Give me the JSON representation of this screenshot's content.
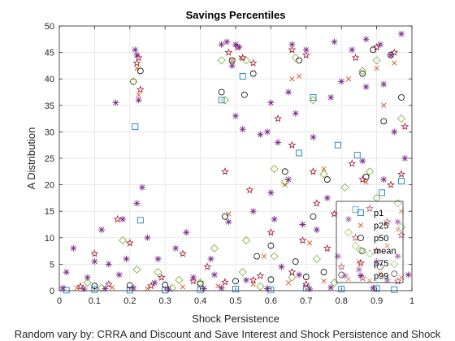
{
  "chart_data": {
    "type": "scatter",
    "title": "Savings Percentiles",
    "xlabel": "Shock Persistence",
    "ylabel": "A Distribution",
    "footer": "Random vary by: CRRA and Discount and Save Interest and Shock Persistence and Shock",
    "xlim": [
      0,
      1
    ],
    "ylim": [
      0,
      50
    ],
    "xticks": [
      0,
      0.1,
      0.2,
      0.3,
      0.4,
      0.5,
      0.6,
      0.7,
      0.8,
      0.9,
      1
    ],
    "xtick_labels": [
      "0",
      "0.1",
      "0.2",
      "0.3",
      "0.4",
      "0.5",
      "0.6",
      "0.7",
      "0.8",
      "0.9",
      "1"
    ],
    "yticks": [
      0,
      5,
      10,
      15,
      20,
      25,
      30,
      35,
      40,
      45,
      50
    ],
    "ytick_labels": [
      "0",
      "5",
      "10",
      "15",
      "20",
      "25",
      "30",
      "35",
      "40",
      "45",
      "50"
    ],
    "grid": true,
    "legend_position": "bottom-right",
    "series": [
      {
        "name": "p1",
        "marker": "square",
        "color": "#0072BD",
        "points": [
          [
            0.215,
            31.0
          ],
          [
            0.23,
            13.3
          ],
          [
            0.46,
            36.0
          ],
          [
            0.52,
            40.5
          ],
          [
            0.68,
            26.0
          ],
          [
            0.72,
            36.5
          ],
          [
            0.79,
            27.5
          ],
          [
            0.84,
            15.3
          ],
          [
            0.845,
            25.6
          ],
          [
            0.915,
            18.5
          ],
          [
            0.97,
            20.7
          ],
          [
            0.02,
            0.1
          ],
          [
            0.1,
            0.2
          ],
          [
            0.2,
            0.1
          ],
          [
            0.3,
            0.1
          ],
          [
            0.4,
            0.2
          ],
          [
            0.5,
            0.3
          ],
          [
            0.6,
            0.2
          ],
          [
            0.7,
            0.5
          ],
          [
            0.8,
            0.3
          ],
          [
            0.9,
            0.4
          ],
          [
            0.95,
            0.2
          ]
        ]
      },
      {
        "name": "p25",
        "marker": "x",
        "color": "#D95319",
        "points": [
          [
            0.225,
            37.0
          ],
          [
            0.22,
            42.0
          ],
          [
            0.49,
            43.5
          ],
          [
            0.515,
            44.0
          ],
          [
            0.66,
            40.0
          ],
          [
            0.68,
            40.5
          ],
          [
            0.82,
            40.0
          ],
          [
            0.9,
            42.0
          ],
          [
            0.95,
            43.0
          ],
          [
            0.92,
            35.0
          ],
          [
            0.64,
            20.0
          ],
          [
            0.75,
            23.0
          ],
          [
            0.87,
            20.5
          ],
          [
            0.93,
            8.5
          ],
          [
            0.97,
            15.0
          ],
          [
            0.96,
            11.5
          ],
          [
            0.71,
            9.0
          ],
          [
            0.58,
            6.5
          ],
          [
            0.48,
            14.5
          ],
          [
            0.85,
            5.5
          ],
          [
            0.91,
            3.2
          ],
          [
            0.05,
            0.5
          ],
          [
            0.15,
            0.6
          ],
          [
            0.25,
            0.4
          ],
          [
            0.35,
            0.7
          ],
          [
            0.45,
            0.9
          ],
          [
            0.55,
            1.2
          ],
          [
            0.65,
            1.5
          ],
          [
            0.75,
            1.8
          ],
          [
            0.82,
            2.2
          ],
          [
            0.88,
            1.9
          ],
          [
            0.97,
            2.5
          ]
        ]
      },
      {
        "name": "p50",
        "marker": "circle",
        "color": "#000000",
        "points": [
          [
            0.21,
            39.5
          ],
          [
            0.23,
            41.5
          ],
          [
            0.46,
            37.5
          ],
          [
            0.525,
            37.0
          ],
          [
            0.49,
            43.5
          ],
          [
            0.55,
            41.0
          ],
          [
            0.68,
            43.5
          ],
          [
            0.86,
            41.0
          ],
          [
            0.89,
            45.5
          ],
          [
            0.94,
            44.5
          ],
          [
            0.92,
            32.0
          ],
          [
            0.97,
            36.5
          ],
          [
            0.64,
            22.5
          ],
          [
            0.76,
            21.0
          ],
          [
            0.87,
            21.5
          ],
          [
            0.72,
            14.0
          ],
          [
            0.6,
            8.5
          ],
          [
            0.47,
            14.0
          ],
          [
            0.56,
            6.5
          ],
          [
            0.67,
            5.5
          ],
          [
            0.86,
            7.5
          ],
          [
            0.91,
            4.5
          ],
          [
            0.75,
            3.5
          ],
          [
            0.1,
            0.9
          ],
          [
            0.2,
            1.0
          ],
          [
            0.3,
            1.1
          ],
          [
            0.4,
            1.3
          ],
          [
            0.5,
            1.8
          ],
          [
            0.6,
            2.1
          ],
          [
            0.7,
            2.6
          ],
          [
            0.8,
            3.0
          ],
          [
            0.95,
            3.2
          ]
        ]
      },
      {
        "name": "mean",
        "marker": "diamond",
        "color": "#77AC30",
        "points": [
          [
            0.21,
            39.5
          ],
          [
            0.47,
            36.0
          ],
          [
            0.46,
            43.5
          ],
          [
            0.53,
            43.5
          ],
          [
            0.67,
            44.0
          ],
          [
            0.72,
            36.0
          ],
          [
            0.86,
            41.5
          ],
          [
            0.9,
            43.5
          ],
          [
            0.97,
            32.5
          ],
          [
            0.61,
            23.0
          ],
          [
            0.64,
            20.5
          ],
          [
            0.75,
            22.0
          ],
          [
            0.88,
            22.5
          ],
          [
            0.81,
            19.5
          ],
          [
            0.9,
            17.5
          ],
          [
            0.96,
            16.5
          ],
          [
            0.97,
            12.0
          ],
          [
            0.84,
            8.5
          ],
          [
            0.53,
            9.5
          ],
          [
            0.44,
            8.0
          ],
          [
            0.18,
            9.5
          ],
          [
            0.22,
            4.0
          ],
          [
            0.28,
            3.5
          ],
          [
            0.61,
            6.5
          ],
          [
            0.73,
            6.0
          ],
          [
            0.82,
            11.0
          ],
          [
            0.88,
            7.0
          ],
          [
            0.95,
            5.0
          ],
          [
            0.34,
            2.0
          ],
          [
            0.4,
            1.5
          ],
          [
            0.08,
            1.5
          ],
          [
            0.52,
            3.5
          ],
          [
            0.66,
            2.5
          ],
          [
            0.12,
            0.5
          ],
          [
            0.32,
            0.5
          ],
          [
            0.57,
            0.8
          ],
          [
            0.78,
            1.5
          ]
        ]
      },
      {
        "name": "p75",
        "marker": "star",
        "color": "#A2142F",
        "points": [
          [
            0.22,
            43.0
          ],
          [
            0.225,
            44.0
          ],
          [
            0.23,
            38.0
          ],
          [
            0.165,
            13.5
          ],
          [
            0.2,
            9.0
          ],
          [
            0.1,
            7.0
          ],
          [
            0.48,
            45.0
          ],
          [
            0.505,
            46.0
          ],
          [
            0.52,
            44.0
          ],
          [
            0.55,
            43.0
          ],
          [
            0.66,
            45.5
          ],
          [
            0.7,
            44.5
          ],
          [
            0.84,
            44.0
          ],
          [
            0.9,
            46.0
          ],
          [
            0.95,
            45.0
          ],
          [
            0.98,
            31.0
          ],
          [
            0.62,
            32.5
          ],
          [
            0.66,
            27.5
          ],
          [
            0.72,
            22.5
          ],
          [
            0.83,
            24.0
          ],
          [
            0.86,
            21.0
          ],
          [
            0.94,
            20.0
          ],
          [
            0.97,
            22.0
          ],
          [
            0.47,
            22.5
          ],
          [
            0.54,
            19.0
          ],
          [
            0.73,
            16.5
          ],
          [
            0.78,
            14.5
          ],
          [
            0.88,
            15.5
          ],
          [
            0.93,
            13.0
          ],
          [
            0.97,
            10.5
          ],
          [
            0.35,
            7.0
          ],
          [
            0.42,
            4.5
          ],
          [
            0.6,
            11.0
          ],
          [
            0.69,
            9.5
          ],
          [
            0.76,
            8.0
          ],
          [
            0.84,
            10.0
          ],
          [
            0.9,
            7.5
          ],
          [
            0.8,
            4.5
          ],
          [
            0.29,
            2.5
          ],
          [
            0.57,
            2.8
          ],
          [
            0.66,
            3.5
          ],
          [
            0.06,
            0.8
          ],
          [
            0.14,
            1.2
          ],
          [
            0.26,
            0.9
          ],
          [
            0.38,
            1.8
          ],
          [
            0.47,
            1.6
          ],
          [
            0.55,
            2.0
          ],
          [
            0.7,
            1.2
          ],
          [
            0.86,
            2.4
          ],
          [
            0.96,
            1.8
          ]
        ]
      },
      {
        "name": "p99",
        "marker": "asterisk",
        "color": "#7E2F8E",
        "points": [
          [
            0.215,
            45.5
          ],
          [
            0.22,
            44.5
          ],
          [
            0.225,
            36.0
          ],
          [
            0.16,
            35.5
          ],
          [
            0.235,
            19.5
          ],
          [
            0.22,
            16.5
          ],
          [
            0.46,
            46.5
          ],
          [
            0.475,
            47.0
          ],
          [
            0.5,
            46.5
          ],
          [
            0.51,
            46.0
          ],
          [
            0.49,
            42.5
          ],
          [
            0.5,
            33.0
          ],
          [
            0.52,
            30.5
          ],
          [
            0.57,
            29.5
          ],
          [
            0.59,
            30.0
          ],
          [
            0.65,
            37.5
          ],
          [
            0.66,
            46.5
          ],
          [
            0.7,
            45.5
          ],
          [
            0.78,
            47.0
          ],
          [
            0.83,
            45.5
          ],
          [
            0.87,
            47.5
          ],
          [
            0.91,
            46.5
          ],
          [
            0.97,
            48.5
          ],
          [
            0.94,
            44.5
          ],
          [
            0.6,
            35.5
          ],
          [
            0.62,
            28.0
          ],
          [
            0.67,
            33.5
          ],
          [
            0.72,
            29.0
          ],
          [
            0.77,
            36.5
          ],
          [
            0.8,
            39.5
          ],
          [
            0.87,
            38.5
          ],
          [
            0.92,
            39.0
          ],
          [
            0.95,
            30.0
          ],
          [
            0.98,
            25.0
          ],
          [
            0.6,
            18.5
          ],
          [
            0.65,
            21.0
          ],
          [
            0.76,
            17.5
          ],
          [
            0.82,
            13.5
          ],
          [
            0.86,
            24.5
          ],
          [
            0.92,
            21.0
          ],
          [
            0.96,
            13.0
          ],
          [
            0.12,
            11.5
          ],
          [
            0.18,
            13.5
          ],
          [
            0.04,
            8.0
          ],
          [
            0.1,
            5.5
          ],
          [
            0.14,
            5.0
          ],
          [
            0.19,
            6.0
          ],
          [
            0.25,
            10.0
          ],
          [
            0.28,
            6.0
          ],
          [
            0.33,
            8.0
          ],
          [
            0.36,
            11.0
          ],
          [
            0.43,
            6.0
          ],
          [
            0.48,
            13.0
          ],
          [
            0.55,
            15.0
          ],
          [
            0.61,
            13.5
          ],
          [
            0.69,
            12.5
          ],
          [
            0.73,
            11.5
          ],
          [
            0.79,
            6.5
          ],
          [
            0.85,
            4.0
          ],
          [
            0.9,
            5.5
          ],
          [
            0.96,
            6.5
          ],
          [
            0.02,
            3.5
          ],
          [
            0.08,
            2.5
          ],
          [
            0.17,
            3.0
          ],
          [
            0.27,
            1.5
          ],
          [
            0.38,
            2.5
          ],
          [
            0.44,
            3.0
          ],
          [
            0.53,
            2.0
          ],
          [
            0.63,
            4.5
          ],
          [
            0.68,
            3.0
          ],
          [
            0.81,
            2.8
          ],
          [
            0.93,
            2.0
          ],
          [
            0.99,
            3.0
          ],
          [
            0.01,
            0.5
          ],
          [
            0.07,
            0.3
          ],
          [
            0.13,
            0.4
          ],
          [
            0.21,
            0.5
          ],
          [
            0.31,
            0.3
          ],
          [
            0.41,
            0.4
          ],
          [
            0.46,
            0.5
          ],
          [
            0.59,
            0.4
          ],
          [
            0.71,
            0.3
          ],
          [
            0.77,
            0.6
          ],
          [
            0.89,
            0.5
          ]
        ]
      }
    ]
  }
}
